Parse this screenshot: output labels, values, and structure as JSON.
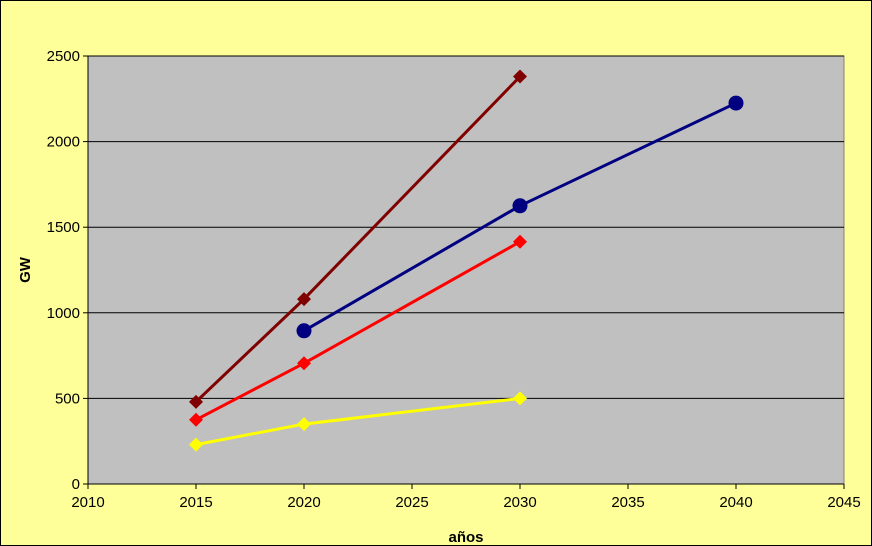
{
  "chart_data": {
    "type": "line",
    "title": "",
    "xlabel": "años",
    "ylabel": "GW",
    "xlim": [
      2010,
      2045
    ],
    "ylim": [
      0,
      2500
    ],
    "x_ticks": [
      2010,
      2015,
      2020,
      2025,
      2030,
      2035,
      2040,
      2045
    ],
    "y_ticks": [
      0,
      500,
      1000,
      1500,
      2000,
      2500
    ],
    "grid": "horizontal",
    "legend": "none",
    "colors": {
      "chart_background": "#FFFF99",
      "plot_background": "#C0C0C0",
      "gridline": "#000000"
    },
    "series": [
      {
        "color": "#800000",
        "marker": "diamond",
        "points": [
          [
            2015,
            480
          ],
          [
            2020,
            1080
          ],
          [
            2030,
            2380
          ]
        ]
      },
      {
        "color": "#000080",
        "marker": "circle",
        "points": [
          [
            2020,
            895
          ],
          [
            2030,
            1625
          ],
          [
            2040,
            2225
          ]
        ]
      },
      {
        "color": "#FF0000",
        "marker": "diamond",
        "points": [
          [
            2015,
            375
          ],
          [
            2020,
            705
          ],
          [
            2030,
            1415
          ]
        ]
      },
      {
        "color": "#FFFF00",
        "marker": "diamond",
        "points": [
          [
            2015,
            230
          ],
          [
            2020,
            350
          ],
          [
            2030,
            500
          ]
        ]
      }
    ]
  }
}
